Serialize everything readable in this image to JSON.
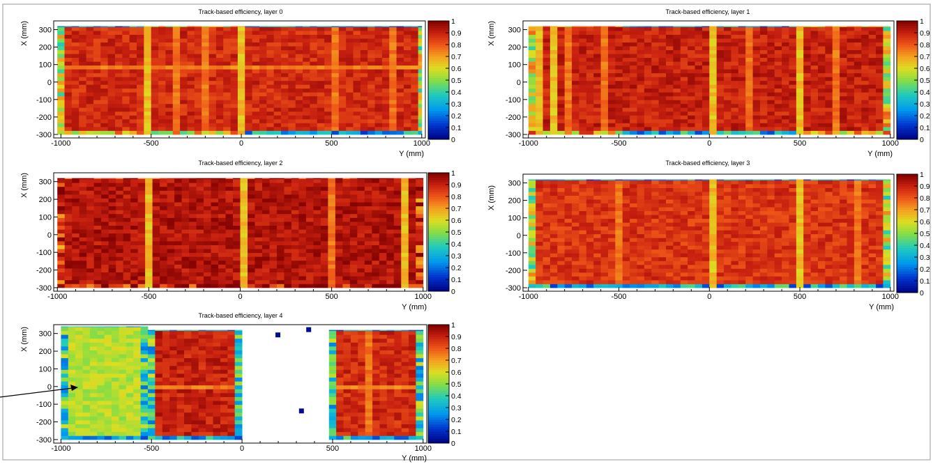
{
  "chart_data": [
    {
      "type": "heatmap",
      "title": "Track-based efficiency, layer 0",
      "xlabel": "Y (mm)",
      "ylabel": "X (mm)",
      "xlim": [
        -1040,
        1020
      ],
      "ylim": [
        -320,
        350
      ],
      "xticks": [
        -1000,
        -500,
        0,
        500,
        1000
      ],
      "yticks": [
        -300,
        -200,
        -100,
        0,
        100,
        200,
        300
      ],
      "zlim": [
        0,
        1
      ],
      "colorbar_ticks": [
        "0",
        "0.1",
        "0.2",
        "0.3",
        "0.4",
        "0.5",
        "0.6",
        "0.7",
        "0.8",
        "0.9",
        "1"
      ],
      "active_regions": [
        [
          -1020,
          -300,
          1000,
          320
        ]
      ],
      "bulk_efficiency": 0.88,
      "edge_efficiency": 0.55,
      "low_lines_y": [
        -530,
        0
      ],
      "med_lines_y": [
        -350,
        -200,
        500,
        850
      ],
      "low_lines_x": [
        80
      ],
      "top_edge_gaps_y": [
        [
          -1020,
          -520
        ],
        [
          0,
          1000
        ]
      ],
      "bottom_edge_gaps_y": [
        [
          0,
          1000
        ]
      ]
    },
    {
      "type": "heatmap",
      "title": "Track-based efficiency, layer 1",
      "xlabel": "Y (mm)",
      "ylabel": "X (mm)",
      "xlim": [
        -1030,
        1020
      ],
      "ylim": [
        -320,
        350
      ],
      "xticks": [
        -1000,
        -500,
        0,
        500,
        1000
      ],
      "yticks": [
        -300,
        -200,
        -100,
        0,
        100,
        200,
        300
      ],
      "zlim": [
        0,
        1
      ],
      "colorbar_ticks": [
        "0",
        "0.1",
        "0.2",
        "0.3",
        "0.4",
        "0.5",
        "0.6",
        "0.7",
        "0.8",
        "0.9",
        "1"
      ],
      "active_regions": [
        [
          -1000,
          -300,
          1000,
          320
        ]
      ],
      "bulk_efficiency": 0.9,
      "edge_efficiency": 0.6,
      "low_lines_y": [
        -960,
        -870,
        0,
        490
      ],
      "med_lines_y": [
        -780,
        -600,
        230,
        700
      ],
      "low_lines_x": [],
      "top_edge_gaps_y": [
        [
          -500,
          500
        ]
      ],
      "bottom_edge_gaps_y": [
        [
          -520,
          500
        ]
      ]
    },
    {
      "type": "heatmap",
      "title": "Track-based efficiency, layer 2",
      "xlabel": "Y (mm)",
      "ylabel": "X (mm)",
      "xlim": [
        -1020,
        1020
      ],
      "ylim": [
        -320,
        350
      ],
      "xticks": [
        -1000,
        -500,
        0,
        500,
        1000
      ],
      "yticks": [
        -300,
        -200,
        -100,
        0,
        100,
        200,
        300
      ],
      "zlim": [
        0,
        1
      ],
      "colorbar_ticks": [
        "0",
        "0.1",
        "0.2",
        "0.3",
        "0.4",
        "0.5",
        "0.6",
        "0.7",
        "0.8",
        "0.9",
        "1"
      ],
      "active_regions": [
        [
          -1000,
          -300,
          1000,
          320
        ]
      ],
      "bulk_efficiency": 0.93,
      "edge_efficiency": 0.85,
      "low_lines_y": [
        -500,
        0,
        880
      ],
      "med_lines_y": [
        500
      ],
      "low_lines_x": [],
      "top_edge_gaps_y": [],
      "bottom_edge_gaps_y": []
    },
    {
      "type": "heatmap",
      "title": "Track-based efficiency, layer 3",
      "xlabel": "Y (mm)",
      "ylabel": "X (mm)",
      "xlim": [
        -1030,
        1020
      ],
      "ylim": [
        -320,
        350
      ],
      "xticks": [
        -1000,
        -500,
        0,
        500,
        1000
      ],
      "yticks": [
        -300,
        -200,
        -100,
        0,
        100,
        200,
        300
      ],
      "zlim": [
        0,
        1
      ],
      "colorbar_ticks": [
        "0",
        "0.1",
        "0.2",
        "0.3",
        "0.4",
        "0.5",
        "0.6",
        "0.7",
        "0.8",
        "0.9",
        "1"
      ],
      "active_regions": [
        [
          -1000,
          -300,
          1000,
          320
        ]
      ],
      "bulk_efficiency": 0.86,
      "edge_efficiency": 0.55,
      "low_lines_y": [
        0,
        500
      ],
      "med_lines_y": [
        -500,
        830
      ],
      "low_lines_x": [],
      "top_edge_gaps_y": [
        [
          -1000,
          1000
        ]
      ],
      "bottom_edge_gaps_y": [
        [
          -1000,
          1000
        ]
      ]
    },
    {
      "type": "heatmap",
      "title": "Track-based efficiency, layer 4",
      "xlabel": "Y (mm)",
      "ylabel": "X (mm)",
      "xlim": [
        -1040,
        1020
      ],
      "ylim": [
        -320,
        350
      ],
      "xticks": [
        -1000,
        -500,
        0,
        500,
        1000
      ],
      "yticks": [
        -300,
        -200,
        -100,
        0,
        100,
        200,
        300
      ],
      "zlim": [
        0,
        1
      ],
      "colorbar_ticks": [
        "0",
        "0.1",
        "0.2",
        "0.3",
        "0.4",
        "0.5",
        "0.6",
        "0.7",
        "0.8",
        "0.9",
        "1"
      ],
      "active_regions": [
        [
          -1000,
          -300,
          -520,
          340
        ],
        [
          -520,
          -300,
          0,
          320
        ],
        [
          480,
          -300,
          1000,
          320
        ]
      ],
      "region_efficiency": [
        0.55,
        0.9,
        0.88
      ],
      "bulk_efficiency": 0.9,
      "edge_efficiency": 0.4,
      "low_lines_y": [],
      "med_lines_y": [
        700
      ],
      "low_lines_x": [
        0
      ],
      "top_edge_gaps_y": [
        [
          -1000,
          0
        ],
        [
          480,
          1000
        ]
      ],
      "bottom_edge_gaps_y": [
        [
          -1000,
          0
        ],
        [
          480,
          1000
        ]
      ],
      "isolated_low_cells": [
        [
          200,
          290
        ],
        [
          370,
          320
        ],
        [
          330,
          -140
        ]
      ]
    }
  ]
}
